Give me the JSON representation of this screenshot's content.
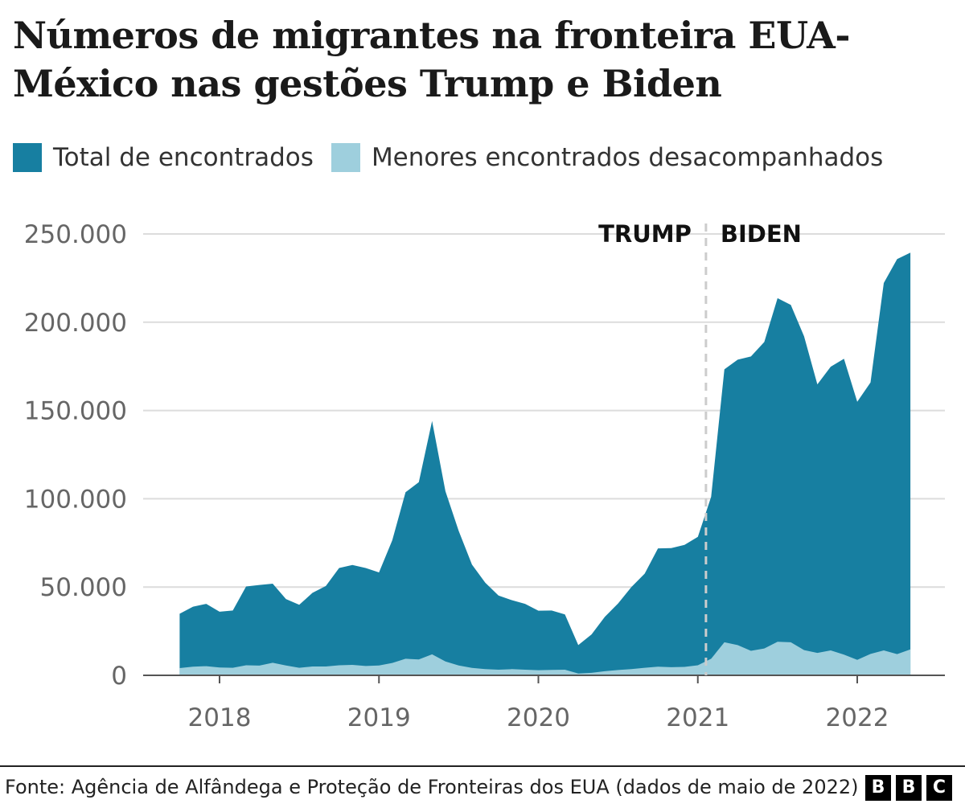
{
  "title": "Números de migrantes na fronteira EUA-México nas gestões Trump e Biden",
  "legend": [
    {
      "label": "Total de encontrados",
      "color": "#177fa1"
    },
    {
      "label": "Menores encontrados desacompanhados",
      "color": "#9ecfdd"
    }
  ],
  "source": "Fonte: Agência de Alfândega e Proteção de Fronteiras dos EUA (dados de maio de 2022)",
  "logo": [
    "B",
    "B",
    "C"
  ],
  "chart_data": {
    "type": "area",
    "x_tick_labels": [
      "2018",
      "2019",
      "2020",
      "2021",
      "2022"
    ],
    "y_tick_labels": [
      "0",
      "50.000",
      "100.000",
      "150.000",
      "200.000",
      "250.000"
    ],
    "y_ticks": [
      0,
      50000,
      100000,
      150000,
      200000,
      250000
    ],
    "ylim": [
      0,
      250000
    ],
    "x_range": [
      "2017-10",
      "2022-05"
    ],
    "grid": true,
    "legend_position": "top-left",
    "x": [
      "2017-10",
      "2017-11",
      "2017-12",
      "2018-01",
      "2018-02",
      "2018-03",
      "2018-04",
      "2018-05",
      "2018-06",
      "2018-07",
      "2018-08",
      "2018-09",
      "2018-10",
      "2018-11",
      "2018-12",
      "2019-01",
      "2019-02",
      "2019-03",
      "2019-04",
      "2019-05",
      "2019-06",
      "2019-07",
      "2019-08",
      "2019-09",
      "2019-10",
      "2019-11",
      "2019-12",
      "2020-01",
      "2020-02",
      "2020-03",
      "2020-04",
      "2020-05",
      "2020-06",
      "2020-07",
      "2020-08",
      "2020-09",
      "2020-10",
      "2020-11",
      "2020-12",
      "2021-01",
      "2021-02",
      "2021-03",
      "2021-04",
      "2021-05",
      "2021-06",
      "2021-07",
      "2021-08",
      "2021-09",
      "2021-10",
      "2021-11",
      "2021-12",
      "2022-01",
      "2022-02",
      "2022-03",
      "2022-04",
      "2022-05"
    ],
    "series": [
      {
        "name": "Total de encontrados",
        "color": "#177fa1",
        "values": [
          34900,
          38900,
          40500,
          36000,
          36700,
          50300,
          51200,
          51900,
          43200,
          40000,
          46700,
          50600,
          60800,
          62500,
          60800,
          58300,
          76500,
          103700,
          109400,
          144100,
          104300,
          81800,
          62700,
          52500,
          45200,
          42600,
          40500,
          36600,
          36700,
          34500,
          17100,
          23200,
          33100,
          40700,
          50000,
          57600,
          71900,
          72100,
          73900,
          78400,
          101100,
          173300,
          178800,
          180600,
          188800,
          213600,
          209800,
          192000,
          164800,
          174800,
          179300,
          154900,
          165900,
          222200,
          235800,
          239400
        ]
      },
      {
        "name": "Menores encontrados desacompanhados",
        "color": "#9ecfdd",
        "values": [
          4100,
          4900,
          5200,
          4400,
          4300,
          5700,
          5500,
          7100,
          5600,
          4300,
          5000,
          5000,
          5700,
          5900,
          5300,
          5600,
          7000,
          9400,
          9000,
          11900,
          7900,
          5600,
          4200,
          3500,
          3200,
          3500,
          3200,
          2900,
          3100,
          3200,
          1000,
          1400,
          2300,
          3000,
          3500,
          4300,
          4900,
          4600,
          4800,
          5700,
          9400,
          18700,
          17100,
          13900,
          15200,
          19000,
          18700,
          14300,
          12700,
          14100,
          11700,
          8800,
          12100,
          14100,
          12000,
          14700
        ]
      }
    ],
    "annotations": {
      "left": "TRUMP",
      "right": "BIDEN",
      "divider_x": "2021-01-20"
    }
  }
}
